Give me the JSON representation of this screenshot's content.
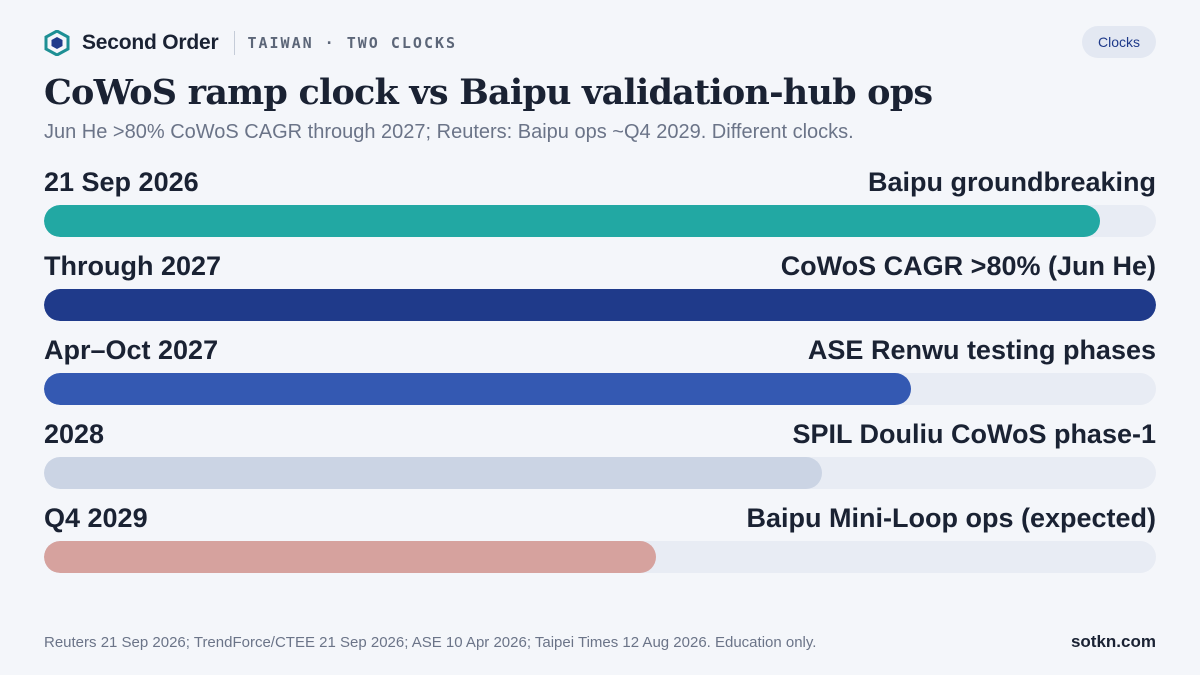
{
  "header": {
    "brand": "Second Order",
    "kicker": "TAIWAN · TWO CLOCKS",
    "tag": "Clocks"
  },
  "title": "CoWoS ramp clock vs Baipu validation-hub ops",
  "subtitle": "Jun He >80% CoWoS CAGR through 2027; Reuters: Baipu ops ~Q4 2029. Different clocks.",
  "chart_data": {
    "type": "bar",
    "orientation": "horizontal",
    "categories": [
      "21 Sep 2026",
      "Through 2027",
      "Apr–Oct 2027",
      "2028",
      "Q4 2029"
    ],
    "labels": [
      "Baipu groundbreaking",
      "CoWoS CAGR >80% (Jun He)",
      "ASE Renwu testing phases",
      "SPIL Douliu CoWoS phase-1",
      "Baipu Mini-Loop ops (expected)"
    ],
    "values": [
      0.95,
      1.0,
      0.78,
      0.7,
      0.55
    ],
    "colors": [
      "#22a8a3",
      "#1f3a8a",
      "#3459b2",
      "#cbd4e4",
      "#d6a29e"
    ],
    "track_color": "#e8ecf4",
    "xlim": [
      0,
      1
    ]
  },
  "footer": {
    "source": "Reuters 21 Sep 2026; TrendForce/CTEE 21 Sep 2026; ASE 10 Apr 2026; Taipei Times 12 Aug 2026. Education only.",
    "site": "sotkn.com"
  }
}
